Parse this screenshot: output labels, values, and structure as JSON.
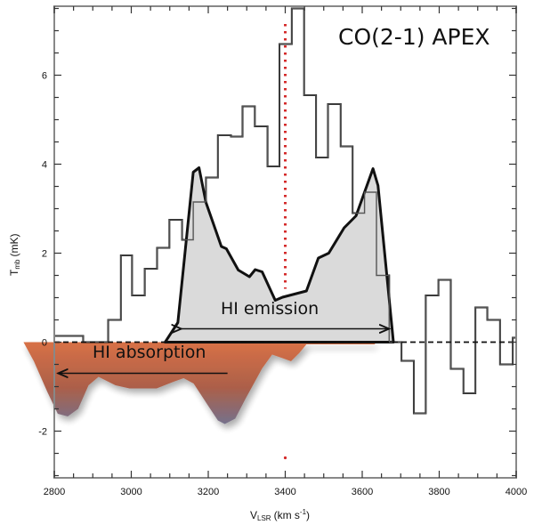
{
  "chart_data": {
    "type": "line",
    "title": "CO(2-1) APEX",
    "xlabel": "V",
    "xlabel_sub": "LSR",
    "xlabel_units": "(km s",
    "xlabel_sup": "-1",
    "xlabel_close": ")",
    "ylabel": "T",
    "ylabel_sub": "mb",
    "ylabel_units": "(mK)",
    "xlim": [
      2800,
      4000
    ],
    "ylim": [
      -3.05,
      7.55
    ],
    "xticks": [
      2800,
      3000,
      3200,
      3400,
      3600,
      3800,
      4000
    ],
    "xtick_labels": [
      "2800",
      "3000",
      "3200",
      "3400",
      "3600",
      "3800",
      "4000"
    ],
    "yticks": [
      -2,
      0,
      2,
      4,
      6
    ],
    "ytick_labels": [
      "-2",
      "0",
      "2",
      "4",
      "6"
    ],
    "systemic_velocity": 3400,
    "series": [
      {
        "name": "CO(2-1) spectrum",
        "style": "histogram",
        "color": "#111111",
        "edges": [
          2800,
          2875,
          2940,
          2973,
          3002,
          3035,
          3067,
          3099,
          3132,
          3161,
          3194,
          3225,
          3259,
          3289,
          3321,
          3354,
          3385,
          3417,
          3449,
          3480,
          3511,
          3544,
          3575,
          3606,
          3637,
          3670,
          3702,
          3734,
          3765,
          3798,
          3830,
          3863,
          3894,
          3925,
          3958,
          3991,
          4000
        ],
        "values": [
          0.14,
          0,
          0.5,
          1.95,
          1.05,
          1.65,
          2.12,
          2.75,
          2.3,
          3.15,
          3.7,
          4.65,
          4.62,
          5.3,
          4.85,
          3.95,
          6.7,
          7.5,
          5.55,
          4.15,
          5.35,
          4.4,
          2.9,
          3.37,
          1.5,
          0,
          -0.42,
          -1.6,
          1.05,
          1.4,
          -0.6,
          -1.15,
          0.78,
          0.5,
          -0.5,
          0.1
        ]
      },
      {
        "name": "HI emission",
        "style": "filled",
        "color": "#d3d3d3",
        "x": [
          3088,
          3121,
          3161,
          3176,
          3194,
          3234,
          3247,
          3278,
          3307,
          3322,
          3340,
          3374,
          3393,
          3455,
          3486,
          3513,
          3553,
          3584,
          3628,
          3641,
          3681
        ],
        "y": [
          0,
          0.44,
          3.82,
          3.92,
          3.14,
          2.15,
          2.1,
          1.62,
          1.47,
          1.63,
          1.58,
          0.94,
          1.01,
          1.15,
          1.89,
          2.0,
          2.57,
          2.84,
          3.9,
          3.52,
          0
        ]
      },
      {
        "name": "HI absorption",
        "style": "filled",
        "color": "#c8623a",
        "x": [
          2720,
          2747,
          2782,
          2809,
          2835,
          2862,
          2889,
          2915,
          2959,
          2995,
          3066,
          3110,
          3136,
          3162,
          3199,
          3225,
          3243,
          3270,
          3297,
          3340,
          3366,
          3393,
          3415,
          3437,
          3455,
          3633
        ],
        "y": [
          0,
          -0.43,
          -1.12,
          -1.61,
          -1.67,
          -1.5,
          -0.97,
          -0.78,
          -0.97,
          -1.04,
          -1.04,
          -0.89,
          -0.81,
          -0.93,
          -1.42,
          -1.76,
          -1.84,
          -1.72,
          -1.27,
          -0.59,
          -0.28,
          -0.36,
          -0.43,
          -0.24,
          -0.05,
          -0.05
        ]
      }
    ],
    "annotations": [
      {
        "text": "HI emission",
        "arrow_from": 3130,
        "arrow_to": 3670,
        "arrow_y": 0.3
      },
      {
        "text": "HI absorption",
        "arrow_from": 3250,
        "arrow_to": 2810,
        "arrow_y": -0.7
      }
    ],
    "colors": {
      "marker_line": "#d42a2a",
      "axis": "#888888"
    }
  }
}
